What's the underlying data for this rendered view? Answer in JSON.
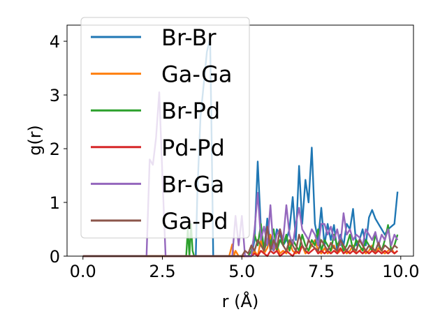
{
  "chart_data": {
    "type": "line",
    "xlabel": "r (Å)",
    "ylabel": "g(r)",
    "xlim": [
      -0.5,
      10.4
    ],
    "ylim": [
      0,
      4.3
    ],
    "xticks": [
      0.0,
      2.5,
      5.0,
      7.5,
      10.0
    ],
    "xtick_labels": [
      "0.0",
      "2.5",
      "5.0",
      "7.5",
      "10.0"
    ],
    "yticks": [
      0,
      1,
      2,
      3,
      4
    ],
    "ytick_labels": [
      "0",
      "1",
      "2",
      "3",
      "4"
    ],
    "grid": false,
    "legend_placement": "top-left",
    "series": [
      {
        "name": "Br-Br",
        "color": "#1f77b4",
        "x": [
          0,
          3.55,
          3.6,
          3.7,
          3.8,
          3.9,
          4.0,
          4.05,
          4.1,
          5.3,
          5.4,
          5.5,
          5.6,
          5.7,
          5.8,
          5.9,
          6.0,
          6.1,
          6.2,
          6.3,
          6.4,
          6.5,
          6.6,
          6.7,
          6.8,
          6.9,
          7.0,
          7.1,
          7.2,
          7.3,
          7.4,
          7.5,
          7.6,
          7.7,
          7.8,
          7.9,
          8.0,
          8.1,
          8.2,
          8.3,
          8.4,
          8.5,
          8.6,
          8.7,
          8.8,
          8.9,
          9.0,
          9.1,
          9.2,
          9.3,
          9.4,
          9.5,
          9.6,
          9.7,
          9.8,
          9.9
        ],
        "y": [
          0,
          0,
          1.2,
          2.6,
          3.2,
          3.8,
          4.05,
          2.2,
          0,
          0,
          0.3,
          1.76,
          0.5,
          0.1,
          0.7,
          0.2,
          0.1,
          0.5,
          0.4,
          0.2,
          0.3,
          0.5,
          1.1,
          0.3,
          1.68,
          0.6,
          1.42,
          1.0,
          2.02,
          0.6,
          0.3,
          0.9,
          0.2,
          0.6,
          0.3,
          0.58,
          0.1,
          0.4,
          0.2,
          0.6,
          0.5,
          0.88,
          0.2,
          0.3,
          0.5,
          0.2,
          0.72,
          0.86,
          0.7,
          0.6,
          0.5,
          0.4,
          0.5,
          0.55,
          0.6,
          1.2
        ]
      },
      {
        "name": "Ga-Ga",
        "color": "#ff7f0e",
        "x": [
          0,
          4.6,
          4.7,
          4.75,
          4.8,
          4.9,
          5.3,
          5.4,
          5.5,
          5.6,
          5.7,
          5.8,
          5.9,
          6.0,
          6.1,
          6.2,
          6.3,
          6.4,
          6.5,
          6.6,
          6.7,
          6.8,
          6.9,
          7.0,
          7.1,
          7.2,
          7.3,
          7.4,
          7.5,
          7.6,
          7.7,
          7.8,
          7.9,
          8.0,
          8.1,
          8.2,
          8.3,
          8.4,
          8.5,
          8.6,
          8.7,
          8.8,
          8.9,
          9.0,
          9.1,
          9.2,
          9.3,
          9.4,
          9.5,
          9.6,
          9.7,
          9.8,
          9.9
        ],
        "y": [
          0,
          0,
          0.22,
          0,
          0.1,
          0,
          0,
          0.1,
          0,
          0.3,
          0.05,
          0.15,
          0.4,
          0.1,
          0.2,
          0.05,
          0.1,
          0.05,
          0.25,
          0.1,
          0.05,
          0.1,
          0.2,
          0.05,
          0.1,
          0.2,
          0.3,
          0.1,
          0.05,
          0.15,
          0.05,
          0.1,
          0.2,
          0.05,
          0.1,
          0.15,
          0.05,
          0.1,
          0.2,
          0.05,
          0.1,
          0.15,
          0.05,
          0.1,
          0.2,
          0.05,
          0.15,
          0.1,
          0.05,
          0.1,
          0.15,
          0.05,
          0.1
        ]
      },
      {
        "name": "Br-Pd",
        "color": "#2ca02c",
        "x": [
          0,
          3.25,
          3.3,
          3.35,
          3.4,
          3.45,
          3.5,
          5.2,
          5.3,
          5.4,
          5.5,
          5.6,
          5.7,
          5.8,
          5.9,
          6.0,
          6.1,
          6.2,
          6.3,
          6.4,
          6.5,
          6.6,
          6.7,
          6.8,
          6.9,
          7.0,
          7.1,
          7.2,
          7.3,
          7.4,
          7.5,
          7.6,
          7.7,
          7.8,
          7.9,
          8.0,
          8.1,
          8.2,
          8.3,
          8.4,
          8.5,
          8.6,
          8.7,
          8.8,
          8.9,
          9.0,
          9.1,
          9.2,
          9.3,
          9.4,
          9.5,
          9.6,
          9.7,
          9.8,
          9.9
        ],
        "y": [
          0,
          0,
          0.5,
          0,
          0.6,
          0.1,
          0,
          0,
          0.1,
          0.4,
          0.2,
          0.6,
          0.1,
          0.3,
          0.2,
          0.5,
          0.1,
          0.3,
          0.2,
          0.4,
          0.1,
          0.3,
          0.2,
          0.1,
          0.4,
          0.2,
          0.1,
          0.3,
          0.2,
          0.5,
          0.1,
          0.3,
          0.2,
          0.1,
          0.4,
          0.2,
          0.3,
          0.1,
          0.2,
          0.4,
          0.1,
          0.3,
          0.2,
          0.1,
          0.3,
          0.2,
          0.1,
          0.4,
          0.2,
          0.1,
          0.3,
          0.58,
          0.1,
          0.2,
          0.4
        ]
      },
      {
        "name": "Pd-Pd",
        "color": "#d62728",
        "x": [
          0,
          5.3,
          5.4,
          5.5,
          5.6,
          5.7,
          5.8,
          5.9,
          6.0,
          6.1,
          6.2,
          6.3,
          6.4,
          6.5,
          6.6,
          6.7,
          6.8,
          6.9,
          7.0,
          7.1,
          7.2,
          7.3,
          7.4,
          7.5,
          7.6,
          7.7,
          7.8,
          7.9,
          8.0,
          8.1,
          8.2,
          8.3,
          8.4,
          8.5,
          8.6,
          8.7,
          8.8,
          8.9,
          9.0,
          9.1,
          9.2,
          9.3,
          9.4,
          9.5,
          9.6,
          9.7,
          9.8,
          9.9
        ],
        "y": [
          0,
          0,
          0.05,
          0,
          0.1,
          0.05,
          0,
          0.1,
          0.05,
          0.1,
          0,
          0.05,
          0.1,
          0.05,
          0,
          0.1,
          0.05,
          0.2,
          0.1,
          0.05,
          0.1,
          0.15,
          0.05,
          0.1,
          0.05,
          0.1,
          0.05,
          0.1,
          0.05,
          0.15,
          0.05,
          0.1,
          0.05,
          0.1,
          0.05,
          0.1,
          0.05,
          0.1,
          0.05,
          0.1,
          0.05,
          0.1,
          0.05,
          0.1,
          0.05,
          0.1,
          0.05,
          0.1
        ]
      },
      {
        "name": "Br-Ga",
        "color": "#9467bd",
        "x": [
          0,
          2.0,
          2.1,
          2.2,
          2.3,
          2.4,
          2.5,
          2.6,
          4.7,
          4.8,
          4.9,
          5.0,
          5.1,
          5.3,
          5.4,
          5.5,
          5.6,
          5.7,
          5.8,
          5.9,
          6.0,
          6.1,
          6.2,
          6.3,
          6.4,
          6.5,
          6.6,
          6.7,
          6.8,
          6.9,
          7.0,
          7.1,
          7.2,
          7.3,
          7.4,
          7.5,
          7.6,
          7.7,
          7.8,
          7.9,
          8.0,
          8.1,
          8.2,
          8.3,
          8.4,
          8.5,
          8.6,
          8.7,
          8.8,
          8.9,
          9.0,
          9.1,
          9.2,
          9.3,
          9.4,
          9.5,
          9.6,
          9.7,
          9.8,
          9.9
        ],
        "y": [
          0,
          0,
          1.8,
          1.7,
          2.2,
          3.05,
          1.5,
          0,
          0,
          0.75,
          0.2,
          0.75,
          0,
          0,
          0.5,
          1.18,
          0.3,
          0.55,
          0.2,
          0.95,
          0.1,
          0.4,
          0.5,
          0.3,
          0.95,
          0.4,
          0.2,
          0.6,
          0.9,
          0.5,
          0.4,
          0.3,
          0.5,
          0.4,
          0.2,
          0.6,
          0.6,
          0.4,
          0.55,
          0.3,
          0.5,
          0.2,
          0.8,
          0.4,
          0.5,
          0.3,
          0.4,
          0.35,
          0.2,
          0.5,
          0.4,
          0.3,
          0.45,
          0.2,
          0.4,
          0.3,
          0.5,
          0.2,
          0.4,
          0.3
        ]
      },
      {
        "name": "Ga-Pd",
        "color": "#8c564b",
        "x": [
          0,
          5.0,
          5.1,
          5.2,
          5.3,
          5.4,
          5.5,
          5.6,
          5.7,
          5.8,
          5.9,
          6.0,
          6.1,
          6.2,
          6.3,
          6.4,
          6.5,
          6.6,
          6.7,
          6.8,
          6.9,
          7.0,
          7.1,
          7.2,
          7.3,
          7.4,
          7.5,
          7.6,
          7.7,
          7.8,
          7.9,
          8.0,
          8.1,
          8.2,
          8.3,
          8.4,
          8.5,
          8.6,
          8.7,
          8.8,
          8.9,
          9.0,
          9.1,
          9.2,
          9.3,
          9.4,
          9.5,
          9.6,
          9.7,
          9.8,
          9.9
        ],
        "y": [
          0,
          0,
          0.1,
          0.05,
          0.2,
          0.1,
          0.3,
          0.2,
          0.1,
          0.55,
          0.1,
          0.3,
          0.15,
          0.5,
          0.2,
          0.1,
          0.3,
          0.2,
          0.1,
          0.4,
          0.2,
          0.1,
          0.3,
          0.2,
          0.15,
          0.1,
          0.3,
          0.2,
          0.1,
          0.25,
          0.15,
          0.1,
          0.3,
          0.2,
          0.1,
          0.2,
          0.15,
          0.1,
          0.3,
          0.2,
          0.1,
          0.2,
          0.15,
          0.1,
          0.25,
          0.1,
          0.2,
          0.15,
          0.1,
          0.2,
          0.15
        ]
      }
    ]
  }
}
